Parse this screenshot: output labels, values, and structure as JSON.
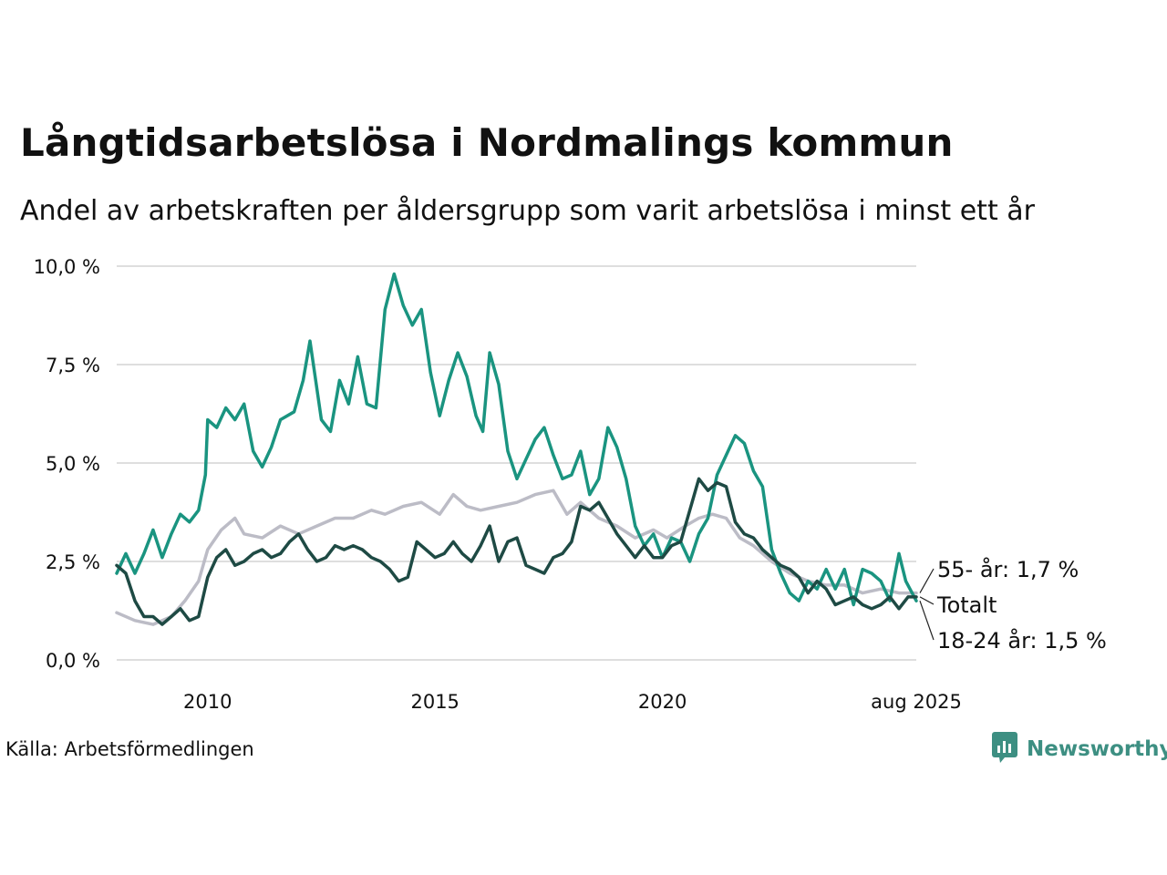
{
  "title": "Långtidsarbetslösa i Nordmalings kommun",
  "subtitle": "Andel av arbetskraften per åldersgrupp som varit arbetslösa i minst ett år",
  "source": "Källa: Arbetsförmedlingen",
  "brand": {
    "name": "Newsworthy",
    "icon": "newsworthy-logo-icon",
    "color": "#3d8f82"
  },
  "chart_data": {
    "type": "line",
    "title": "Långtidsarbetslösa i Nordmalings kommun",
    "subtitle": "Andel av arbetskraften per åldersgrupp som varit arbetslösa i minst ett år",
    "xlabel": "",
    "ylabel": "",
    "x_range": [
      2008.0,
      2025.58
    ],
    "ylim": [
      0,
      10
    ],
    "grid": true,
    "legend": "direct-labels-right",
    "x_ticks": [
      {
        "x": 2010,
        "label": "2010"
      },
      {
        "x": 2015,
        "label": "2015"
      },
      {
        "x": 2020,
        "label": "2020"
      },
      {
        "x": 2025.58,
        "label": "aug 2025"
      }
    ],
    "y_ticks": [
      {
        "y": 0,
        "label": "0,0 %"
      },
      {
        "y": 2.5,
        "label": "2,5 %"
      },
      {
        "y": 5,
        "label": "5,0 %"
      },
      {
        "y": 7.5,
        "label": "7,5 %"
      },
      {
        "y": 10,
        "label": "10,0 %"
      }
    ],
    "series": [
      {
        "name": "55- år",
        "color": "#bcbcc6",
        "label": "55- år: 1,7 %",
        "points": [
          [
            2008.0,
            1.2
          ],
          [
            2008.4,
            1.0
          ],
          [
            2008.8,
            0.9
          ],
          [
            2009.2,
            1.1
          ],
          [
            2009.5,
            1.5
          ],
          [
            2009.8,
            2.0
          ],
          [
            2010.0,
            2.8
          ],
          [
            2010.3,
            3.3
          ],
          [
            2010.6,
            3.6
          ],
          [
            2010.8,
            3.2
          ],
          [
            2011.2,
            3.1
          ],
          [
            2011.6,
            3.4
          ],
          [
            2012.0,
            3.2
          ],
          [
            2012.4,
            3.4
          ],
          [
            2012.8,
            3.6
          ],
          [
            2013.2,
            3.6
          ],
          [
            2013.6,
            3.8
          ],
          [
            2013.9,
            3.7
          ],
          [
            2014.3,
            3.9
          ],
          [
            2014.7,
            4.0
          ],
          [
            2015.1,
            3.7
          ],
          [
            2015.4,
            4.2
          ],
          [
            2015.7,
            3.9
          ],
          [
            2016.0,
            3.8
          ],
          [
            2016.4,
            3.9
          ],
          [
            2016.8,
            4.0
          ],
          [
            2017.2,
            4.2
          ],
          [
            2017.6,
            4.3
          ],
          [
            2017.9,
            3.7
          ],
          [
            2018.2,
            4.0
          ],
          [
            2018.6,
            3.6
          ],
          [
            2019.0,
            3.4
          ],
          [
            2019.4,
            3.1
          ],
          [
            2019.8,
            3.3
          ],
          [
            2020.1,
            3.1
          ],
          [
            2020.5,
            3.4
          ],
          [
            2020.8,
            3.6
          ],
          [
            2021.1,
            3.7
          ],
          [
            2021.4,
            3.6
          ],
          [
            2021.7,
            3.1
          ],
          [
            2022.0,
            2.9
          ],
          [
            2022.4,
            2.5
          ],
          [
            2022.8,
            2.2
          ],
          [
            2023.2,
            2.0
          ],
          [
            2023.6,
            1.9
          ],
          [
            2024.0,
            1.9
          ],
          [
            2024.4,
            1.7
          ],
          [
            2024.8,
            1.8
          ],
          [
            2025.2,
            1.7
          ],
          [
            2025.58,
            1.7
          ]
        ]
      },
      {
        "name": "18-24 år",
        "color": "#1a9480",
        "label": "18-24 år: 1,5 %",
        "points": [
          [
            2008.0,
            2.2
          ],
          [
            2008.2,
            2.7
          ],
          [
            2008.4,
            2.2
          ],
          [
            2008.6,
            2.7
          ],
          [
            2008.8,
            3.3
          ],
          [
            2009.0,
            2.6
          ],
          [
            2009.2,
            3.2
          ],
          [
            2009.4,
            3.7
          ],
          [
            2009.6,
            3.5
          ],
          [
            2009.8,
            3.8
          ],
          [
            2009.95,
            4.7
          ],
          [
            2010.0,
            6.1
          ],
          [
            2010.2,
            5.9
          ],
          [
            2010.4,
            6.4
          ],
          [
            2010.6,
            6.1
          ],
          [
            2010.8,
            6.5
          ],
          [
            2011.0,
            5.3
          ],
          [
            2011.2,
            4.9
          ],
          [
            2011.4,
            5.4
          ],
          [
            2011.6,
            6.1
          ],
          [
            2011.9,
            6.3
          ],
          [
            2012.1,
            7.1
          ],
          [
            2012.25,
            8.1
          ],
          [
            2012.5,
            6.1
          ],
          [
            2012.7,
            5.8
          ],
          [
            2012.9,
            7.1
          ],
          [
            2013.1,
            6.5
          ],
          [
            2013.3,
            7.7
          ],
          [
            2013.5,
            6.5
          ],
          [
            2013.7,
            6.4
          ],
          [
            2013.9,
            8.9
          ],
          [
            2014.1,
            9.8
          ],
          [
            2014.3,
            9.0
          ],
          [
            2014.5,
            8.5
          ],
          [
            2014.7,
            8.9
          ],
          [
            2014.9,
            7.3
          ],
          [
            2015.1,
            6.2
          ],
          [
            2015.3,
            7.1
          ],
          [
            2015.5,
            7.8
          ],
          [
            2015.7,
            7.2
          ],
          [
            2015.9,
            6.2
          ],
          [
            2016.05,
            5.8
          ],
          [
            2016.2,
            7.8
          ],
          [
            2016.4,
            7.0
          ],
          [
            2016.6,
            5.3
          ],
          [
            2016.8,
            4.6
          ],
          [
            2017.0,
            5.1
          ],
          [
            2017.2,
            5.6
          ],
          [
            2017.4,
            5.9
          ],
          [
            2017.6,
            5.2
          ],
          [
            2017.8,
            4.6
          ],
          [
            2018.0,
            4.7
          ],
          [
            2018.2,
            5.3
          ],
          [
            2018.4,
            4.2
          ],
          [
            2018.6,
            4.6
          ],
          [
            2018.8,
            5.9
          ],
          [
            2019.0,
            5.4
          ],
          [
            2019.2,
            4.6
          ],
          [
            2019.4,
            3.4
          ],
          [
            2019.6,
            2.9
          ],
          [
            2019.8,
            3.2
          ],
          [
            2020.0,
            2.6
          ],
          [
            2020.2,
            3.1
          ],
          [
            2020.4,
            3.0
          ],
          [
            2020.6,
            2.5
          ],
          [
            2020.8,
            3.2
          ],
          [
            2021.0,
            3.6
          ],
          [
            2021.2,
            4.7
          ],
          [
            2021.4,
            5.2
          ],
          [
            2021.6,
            5.7
          ],
          [
            2021.8,
            5.5
          ],
          [
            2022.0,
            4.8
          ],
          [
            2022.2,
            4.4
          ],
          [
            2022.4,
            2.8
          ],
          [
            2022.6,
            2.2
          ],
          [
            2022.8,
            1.7
          ],
          [
            2023.0,
            1.5
          ],
          [
            2023.2,
            2.0
          ],
          [
            2023.4,
            1.8
          ],
          [
            2023.6,
            2.3
          ],
          [
            2023.8,
            1.8
          ],
          [
            2024.0,
            2.3
          ],
          [
            2024.2,
            1.4
          ],
          [
            2024.4,
            2.3
          ],
          [
            2024.6,
            2.2
          ],
          [
            2024.8,
            2.0
          ],
          [
            2025.0,
            1.5
          ],
          [
            2025.2,
            2.7
          ],
          [
            2025.35,
            2.0
          ],
          [
            2025.58,
            1.5
          ]
        ]
      },
      {
        "name": "Totalt",
        "color": "#1e4a44",
        "label": "Totalt",
        "points": [
          [
            2008.0,
            2.4
          ],
          [
            2008.2,
            2.2
          ],
          [
            2008.4,
            1.5
          ],
          [
            2008.6,
            1.1
          ],
          [
            2008.8,
            1.1
          ],
          [
            2009.0,
            0.9
          ],
          [
            2009.2,
            1.1
          ],
          [
            2009.4,
            1.3
          ],
          [
            2009.6,
            1.0
          ],
          [
            2009.8,
            1.1
          ],
          [
            2010.0,
            2.1
          ],
          [
            2010.2,
            2.6
          ],
          [
            2010.4,
            2.8
          ],
          [
            2010.6,
            2.4
          ],
          [
            2010.8,
            2.5
          ],
          [
            2011.0,
            2.7
          ],
          [
            2011.2,
            2.8
          ],
          [
            2011.4,
            2.6
          ],
          [
            2011.6,
            2.7
          ],
          [
            2011.8,
            3.0
          ],
          [
            2012.0,
            3.2
          ],
          [
            2012.2,
            2.8
          ],
          [
            2012.4,
            2.5
          ],
          [
            2012.6,
            2.6
          ],
          [
            2012.8,
            2.9
          ],
          [
            2013.0,
            2.8
          ],
          [
            2013.2,
            2.9
          ],
          [
            2013.4,
            2.8
          ],
          [
            2013.6,
            2.6
          ],
          [
            2013.8,
            2.5
          ],
          [
            2014.0,
            2.3
          ],
          [
            2014.2,
            2.0
          ],
          [
            2014.4,
            2.1
          ],
          [
            2014.6,
            3.0
          ],
          [
            2014.8,
            2.8
          ],
          [
            2015.0,
            2.6
          ],
          [
            2015.2,
            2.7
          ],
          [
            2015.4,
            3.0
          ],
          [
            2015.6,
            2.7
          ],
          [
            2015.8,
            2.5
          ],
          [
            2016.0,
            2.9
          ],
          [
            2016.2,
            3.4
          ],
          [
            2016.4,
            2.5
          ],
          [
            2016.6,
            3.0
          ],
          [
            2016.8,
            3.1
          ],
          [
            2017.0,
            2.4
          ],
          [
            2017.2,
            2.3
          ],
          [
            2017.4,
            2.2
          ],
          [
            2017.6,
            2.6
          ],
          [
            2017.8,
            2.7
          ],
          [
            2018.0,
            3.0
          ],
          [
            2018.2,
            3.9
          ],
          [
            2018.4,
            3.8
          ],
          [
            2018.6,
            4.0
          ],
          [
            2018.8,
            3.6
          ],
          [
            2019.0,
            3.2
          ],
          [
            2019.2,
            2.9
          ],
          [
            2019.4,
            2.6
          ],
          [
            2019.6,
            2.9
          ],
          [
            2019.8,
            2.6
          ],
          [
            2020.0,
            2.6
          ],
          [
            2020.2,
            2.9
          ],
          [
            2020.4,
            3.0
          ],
          [
            2020.6,
            3.8
          ],
          [
            2020.8,
            4.6
          ],
          [
            2021.0,
            4.3
          ],
          [
            2021.2,
            4.5
          ],
          [
            2021.4,
            4.4
          ],
          [
            2021.6,
            3.5
          ],
          [
            2021.8,
            3.2
          ],
          [
            2022.0,
            3.1
          ],
          [
            2022.2,
            2.8
          ],
          [
            2022.4,
            2.6
          ],
          [
            2022.6,
            2.4
          ],
          [
            2022.8,
            2.3
          ],
          [
            2023.0,
            2.1
          ],
          [
            2023.2,
            1.7
          ],
          [
            2023.4,
            2.0
          ],
          [
            2023.6,
            1.8
          ],
          [
            2023.8,
            1.4
          ],
          [
            2024.0,
            1.5
          ],
          [
            2024.2,
            1.6
          ],
          [
            2024.4,
            1.4
          ],
          [
            2024.6,
            1.3
          ],
          [
            2024.8,
            1.4
          ],
          [
            2025.0,
            1.6
          ],
          [
            2025.2,
            1.3
          ],
          [
            2025.4,
            1.6
          ],
          [
            2025.58,
            1.6
          ]
        ]
      }
    ]
  }
}
